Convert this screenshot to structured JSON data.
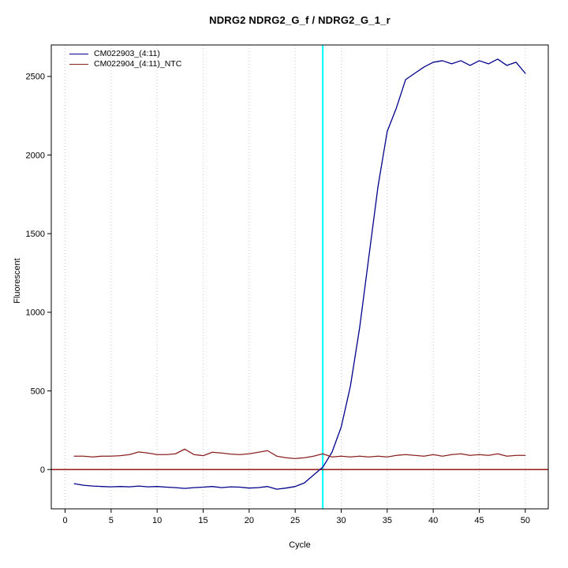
{
  "chart_data": {
    "type": "line",
    "title": "NDRG2  NDRG2_G_f / NDRG2_G_1_r",
    "xlabel": "Cycle",
    "ylabel": "Fluorescent",
    "xlim": [
      -1.5,
      52.5
    ],
    "ylim": [
      -250,
      2700
    ],
    "xticks": [
      0,
      5,
      10,
      15,
      20,
      25,
      30,
      35,
      40,
      45,
      50
    ],
    "yticks": [
      0,
      500,
      1000,
      1500,
      2000,
      2500
    ],
    "grid": {
      "vertical_dotted": true,
      "color": "#c8c8c8"
    },
    "x": [
      1,
      2,
      3,
      4,
      5,
      6,
      7,
      8,
      9,
      10,
      11,
      12,
      13,
      14,
      15,
      16,
      17,
      18,
      19,
      20,
      21,
      22,
      23,
      24,
      25,
      26,
      27,
      28,
      29,
      30,
      31,
      32,
      33,
      34,
      35,
      36,
      37,
      38,
      39,
      40,
      41,
      42,
      43,
      44,
      45,
      46,
      47,
      48,
      49,
      50
    ],
    "series": [
      {
        "name": "CM022903_(4:11)",
        "color": "#00008B",
        "values": [
          -90,
          -100,
          -105,
          -108,
          -110,
          -108,
          -110,
          -105,
          -110,
          -108,
          -112,
          -115,
          -120,
          -115,
          -112,
          -108,
          -115,
          -110,
          -112,
          -118,
          -115,
          -108,
          -125,
          -118,
          -108,
          -85,
          -35,
          15,
          110,
          270,
          530,
          900,
          1350,
          1800,
          2150,
          2300,
          2480,
          2520,
          2560,
          2590,
          2600,
          2580,
          2600,
          2570,
          2600,
          2580,
          2610,
          2570,
          2590,
          2520
        ]
      },
      {
        "name": "CM022904_(4:11)_NTC",
        "color": "#8B2222",
        "values": [
          85,
          85,
          80,
          85,
          85,
          88,
          95,
          112,
          105,
          95,
          95,
          100,
          130,
          95,
          88,
          110,
          105,
          98,
          95,
          100,
          110,
          120,
          85,
          75,
          70,
          75,
          85,
          100,
          80,
          85,
          80,
          85,
          80,
          85,
          80,
          90,
          95,
          90,
          85,
          95,
          85,
          95,
          100,
          90,
          95,
          90,
          100,
          85,
          90,
          90
        ]
      }
    ],
    "threshold_line": {
      "y": 0,
      "color": "#8B0000"
    },
    "ct_line": {
      "x": 28,
      "color": "#00FFFF"
    },
    "legend_position": "top-left"
  }
}
